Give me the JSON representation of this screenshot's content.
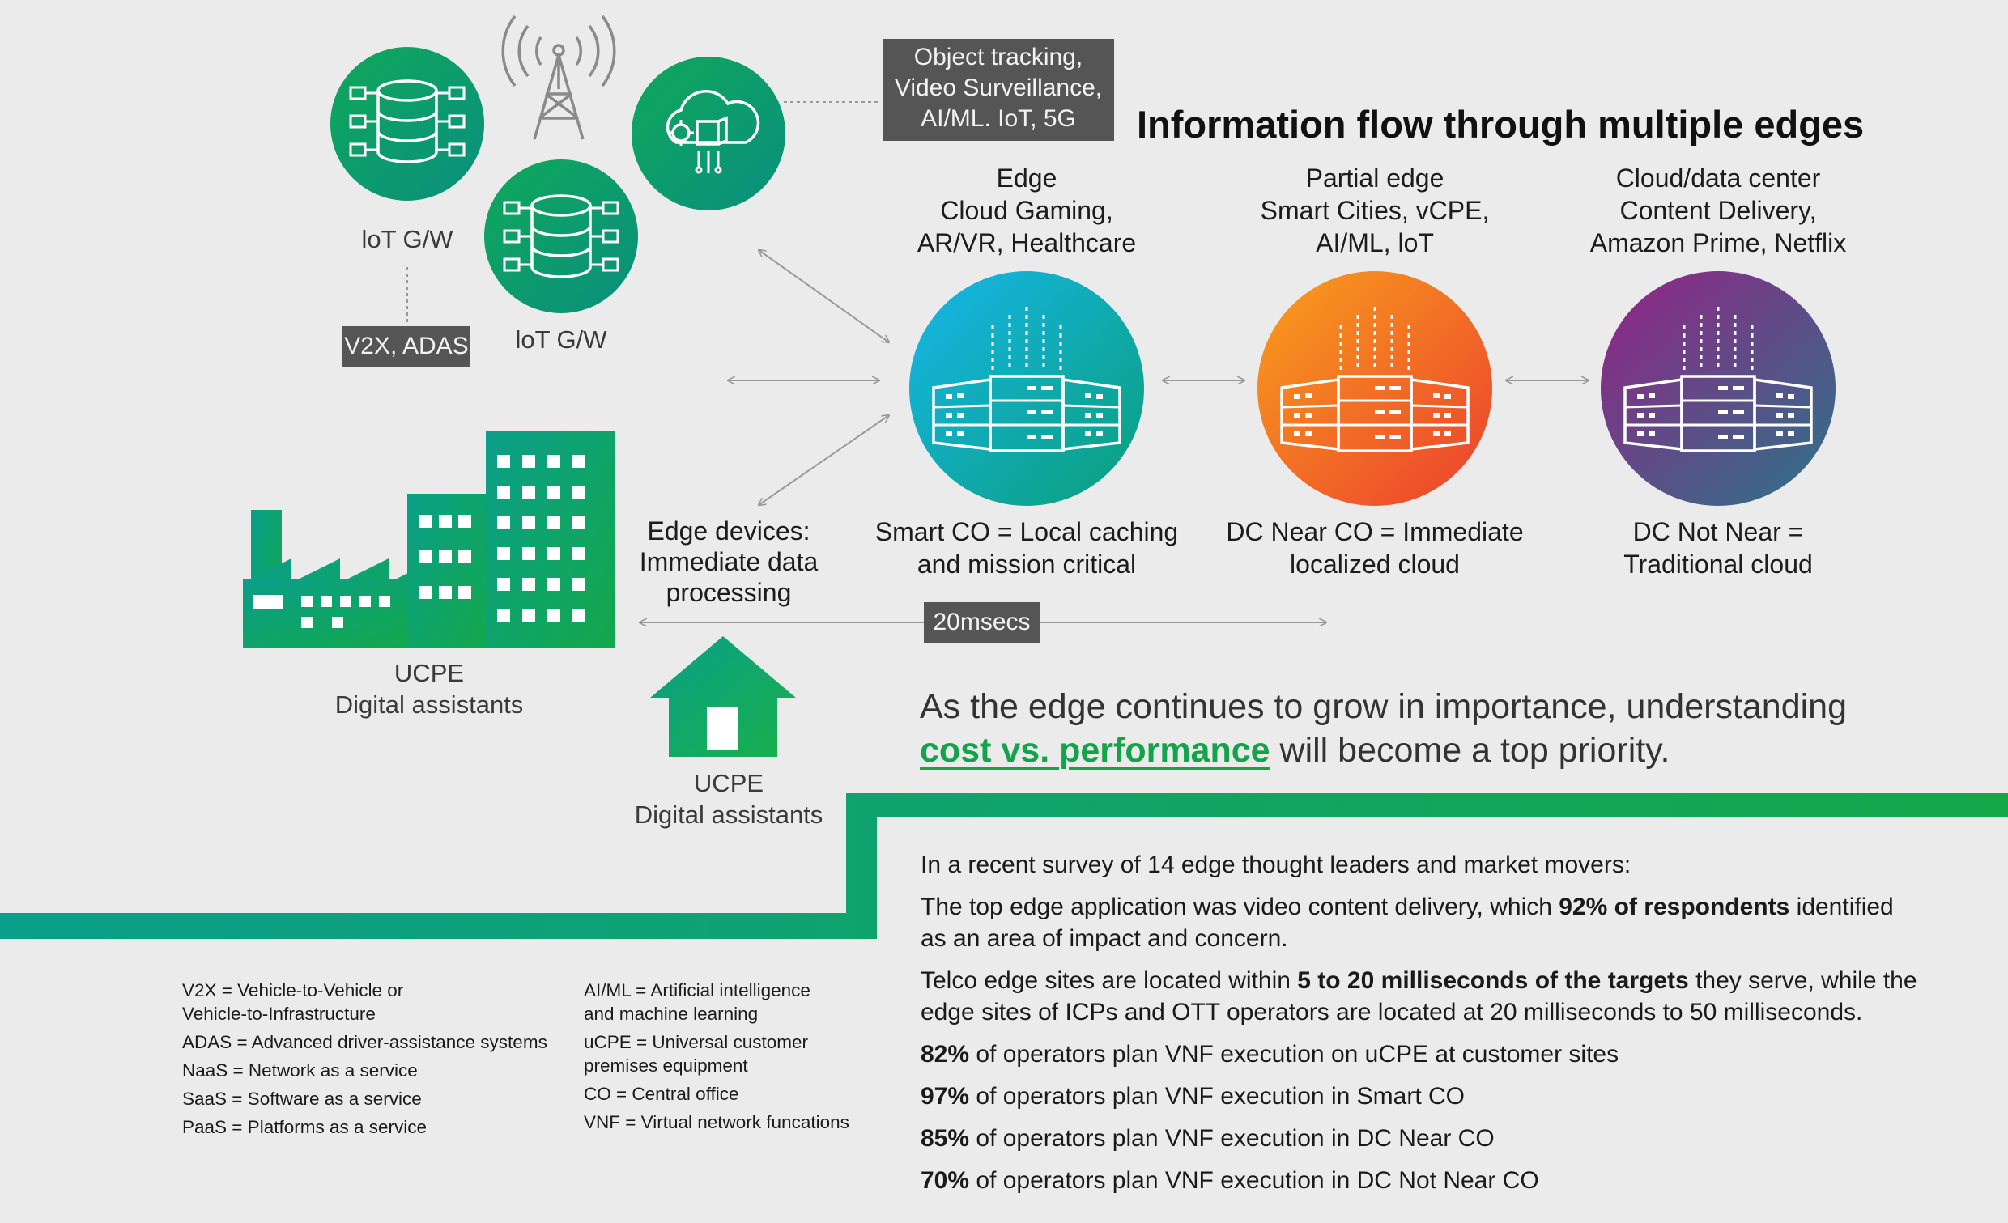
{
  "title": "Information flow through multiple edges",
  "iot_gateways": [
    {
      "label": "loT G/W"
    },
    {
      "label": "loT G/W"
    }
  ],
  "callouts": {
    "v2x": "V2X, ADAS",
    "object_tracking": [
      "Object tracking,",
      "Video Surveillance,",
      "AI/ML. IoT, 5G"
    ],
    "latency": "20msecs"
  },
  "edge_tiers": [
    {
      "name": "Edge",
      "apps": [
        "Cloud Gaming,",
        "AR/VR, Healthcare"
      ],
      "caption": [
        "Smart CO = Local caching",
        "and mission critical"
      ],
      "colors": [
        "#12b3e6",
        "#0a9f8a"
      ]
    },
    {
      "name": "Partial edge",
      "apps": [
        "Smart Cities, vCPE,",
        "AI/ML, loT"
      ],
      "caption": [
        "DC Near CO = Immediate",
        "localized cloud"
      ],
      "colors": [
        "#f7941d",
        "#ee4b2b"
      ]
    },
    {
      "name": "Cloud/data center",
      "apps": [
        "Content Delivery,",
        "Amazon Prime, Netflix"
      ],
      "caption": [
        "DC Not Near =",
        "Traditional cloud"
      ],
      "colors": [
        "#8b2a8c",
        "#2e6f8a"
      ]
    }
  ],
  "edge_devices": [
    "Edge devices:",
    "Immediate data",
    "processing"
  ],
  "ucpe_factory": [
    "UCPE",
    "Digital assistants"
  ],
  "ucpe_home": [
    "UCPE",
    "Digital assistants"
  ],
  "tagline": {
    "line1": "As the edge continues to grow in importance, understanding",
    "highlight": "cost vs. performance",
    "line2_rest": " will become a top priority."
  },
  "survey": {
    "intro": "In a recent survey of 14 edge thought leaders and market movers:",
    "p1_pre": "The top edge application was video content delivery, which ",
    "p1_bold": "92% of respondents",
    "p1_post": " identified as an area of impact and concern.",
    "p2_pre": "Telco edge sites are located within ",
    "p2_bold": "5 to 20 milliseconds of the targets",
    "p2_post": " they serve, while the edge sites of ICPs and OTT operators are located at 20 milliseconds to 50 milliseconds.",
    "stats": [
      {
        "pct": "82%",
        "text": " of operators plan VNF execution on uCPE at customer sites"
      },
      {
        "pct": "97%",
        "text": " of operators plan VNF execution in Smart CO"
      },
      {
        "pct": "85%",
        "text": " of operators plan VNF execution in DC Near CO"
      },
      {
        "pct": "70%",
        "text": " of operators plan VNF execution in  DC Not Near CO"
      }
    ]
  },
  "legend_left": [
    [
      "V2X = Vehicle-to-Vehicle or",
      "Vehicle-to-Infrastructure"
    ],
    [
      "ADAS = Advanced driver-assistance systems"
    ],
    [
      "NaaS = Network as a service"
    ],
    [
      "SaaS = Software as a service"
    ],
    [
      "PaaS = Platforms as a service"
    ]
  ],
  "legend_right": [
    [
      "AI/ML = Artificial intelligence",
      "and machine learning"
    ],
    [
      "uCPE = Universal customer",
      "premises equipment"
    ],
    [
      "CO = Central office"
    ],
    [
      "VNF = Virtual network funcations"
    ]
  ],
  "colors": {
    "green": "#12a34b",
    "teal": "#0a9f8a",
    "box": "#555555"
  },
  "icons": [
    "database-icon",
    "cloud-gear-icon",
    "cell-tower-icon",
    "server-rack-icon",
    "factory-icon",
    "house-icon"
  ]
}
